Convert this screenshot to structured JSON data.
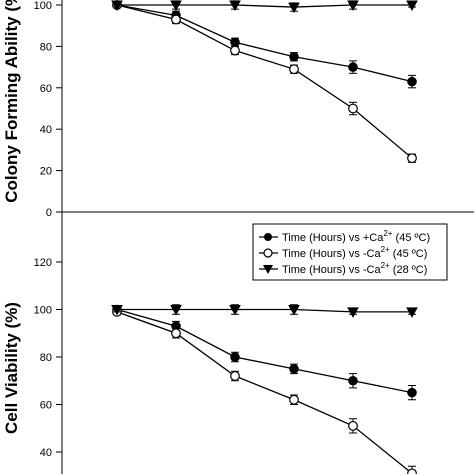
{
  "chart_data": [
    {
      "type": "line",
      "ylabel": "Colony Forming Ability (%)",
      "ylim": [
        0,
        100
      ],
      "yticks": [
        0,
        20,
        40,
        60,
        80,
        100
      ],
      "x": [
        0,
        1,
        2,
        3,
        4,
        5
      ],
      "series": [
        {
          "marker": "filled-circle",
          "values": [
            100,
            95,
            82,
            75,
            70,
            63
          ],
          "errors": [
            1,
            2,
            2,
            2,
            3,
            3
          ]
        },
        {
          "marker": "open-circle",
          "values": [
            100,
            93,
            78,
            69,
            50,
            26
          ],
          "errors": [
            1,
            2,
            2,
            2,
            3,
            2
          ]
        },
        {
          "marker": "filled-triangle-down",
          "values": [
            100,
            100,
            100,
            99,
            100,
            100
          ],
          "errors": [
            1,
            2,
            2,
            2,
            2,
            1
          ]
        }
      ]
    },
    {
      "type": "line",
      "ylabel": "Cell Viability (%)",
      "ylim": [
        30,
        130
      ],
      "yticks": [
        40,
        60,
        80,
        100,
        120
      ],
      "x": [
        0,
        1,
        2,
        3,
        4,
        5
      ],
      "series": [
        {
          "name": "Time (Hours) vs +Ca2+ (45 ºC)",
          "marker": "filled-circle",
          "values": [
            100,
            93,
            80,
            75,
            70,
            65
          ],
          "errors": [
            1,
            2,
            2,
            2,
            3,
            3
          ]
        },
        {
          "name": "Time (Hours) vs -Ca2+ (45 ºC)",
          "marker": "open-circle",
          "values": [
            99,
            90,
            72,
            62,
            51,
            31
          ],
          "errors": [
            1,
            2,
            2,
            2,
            3,
            3
          ]
        },
        {
          "name": "Time (Hours) vs -Ca2+ (28 ºC)",
          "marker": "filled-triangle-down",
          "values": [
            100,
            100,
            100,
            100,
            99,
            99
          ],
          "errors": [
            1,
            2,
            2,
            2,
            1,
            1
          ]
        }
      ],
      "legend": {
        "placement": "top-right",
        "entries": [
          {
            "prefix": "Time (Hours) vs +Ca",
            "sup": "2+",
            "suffix": " (45 ºC)"
          },
          {
            "prefix": "Time (Hours) vs -Ca",
            "sup": "2+",
            "suffix": " (45 ºC)"
          },
          {
            "prefix": "Time (Hours) vs -Ca",
            "sup": "2+",
            "suffix": " (28 ºC)"
          }
        ]
      }
    }
  ]
}
